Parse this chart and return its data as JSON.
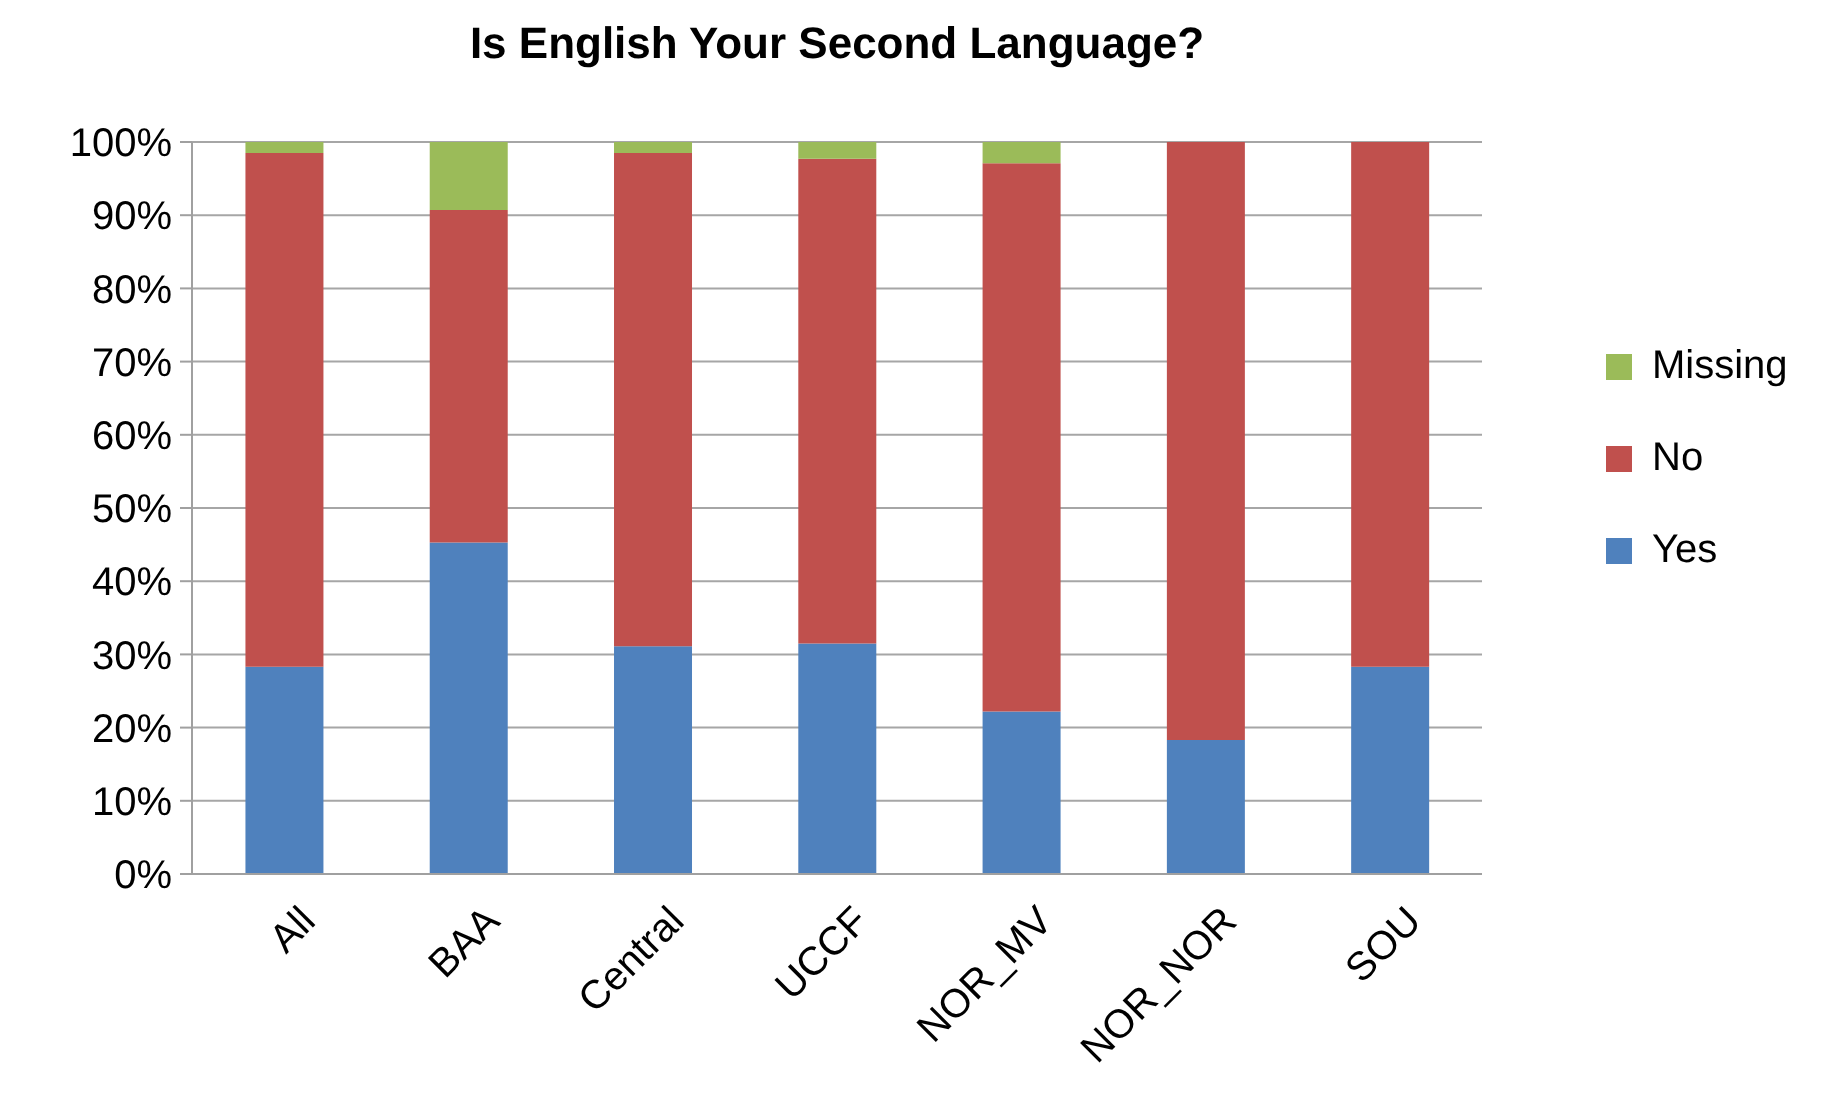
{
  "chart_data": {
    "type": "bar",
    "title": "Is English Your Second Language?",
    "categories": [
      "All",
      "BAA",
      "Central",
      "UCCF",
      "NOR_MV",
      "NOR_NOR",
      "SOU"
    ],
    "series": [
      {
        "name": "Yes",
        "color": "#4f81bd",
        "values": [
          28.3,
          45.3,
          31.1,
          31.5,
          22.2,
          18.3,
          28.3
        ]
      },
      {
        "name": "No",
        "color": "#c0504d",
        "values": [
          70.2,
          45.4,
          67.4,
          66.2,
          74.9,
          81.7,
          71.7
        ]
      },
      {
        "name": "Missing",
        "color": "#9bbb59",
        "values": [
          1.5,
          9.3,
          1.5,
          2.3,
          2.9,
          0,
          0
        ]
      }
    ],
    "stacked": true,
    "ylim": [
      0,
      100
    ],
    "yticks": [
      {
        "value": 0,
        "label": "0%"
      },
      {
        "value": 10,
        "label": "10%"
      },
      {
        "value": 20,
        "label": "20%"
      },
      {
        "value": 30,
        "label": "30%"
      },
      {
        "value": 40,
        "label": "40%"
      },
      {
        "value": 50,
        "label": "50%"
      },
      {
        "value": 60,
        "label": "60%"
      },
      {
        "value": 70,
        "label": "70%"
      },
      {
        "value": 80,
        "label": "80%"
      },
      {
        "value": 90,
        "label": "90%"
      },
      {
        "value": 100,
        "label": "100%"
      }
    ],
    "grid": "y",
    "legend": "right"
  }
}
